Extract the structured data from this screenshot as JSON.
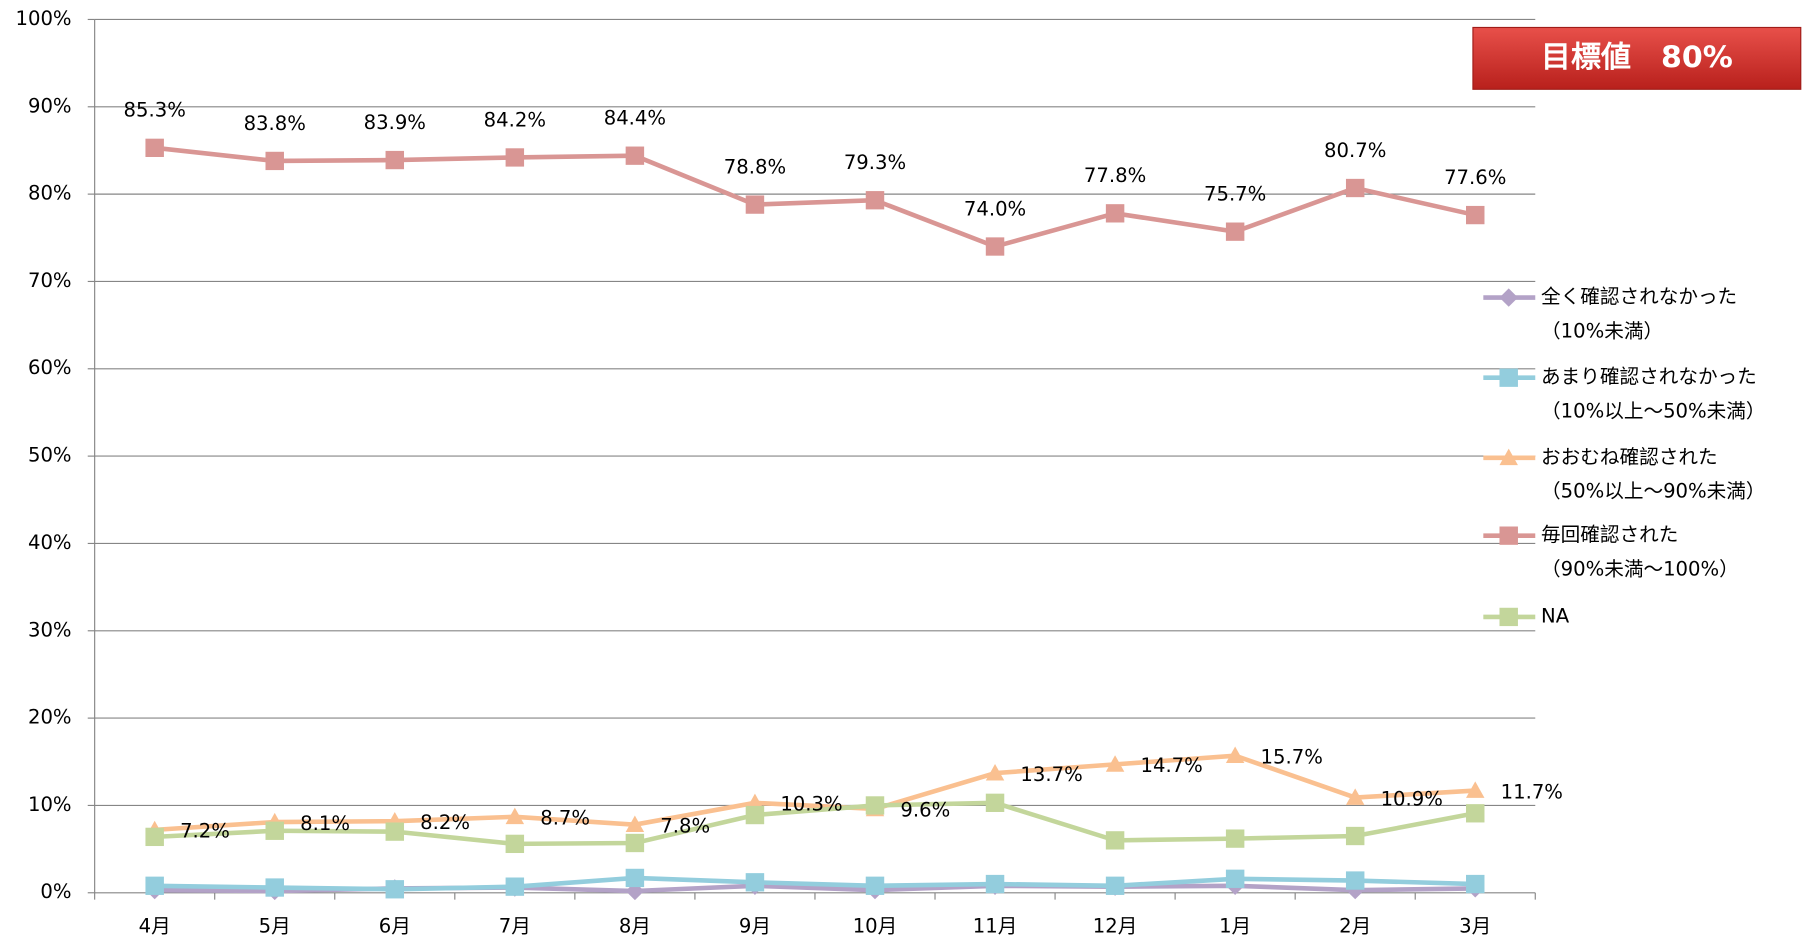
{
  "chart_data": {
    "type": "line",
    "categories": [
      "4月",
      "5月",
      "6月",
      "7月",
      "8月",
      "9月",
      "10月",
      "11月",
      "12月",
      "1月",
      "2月",
      "3月"
    ],
    "ylim": [
      0,
      100
    ],
    "yticks": [
      {
        "value": 0,
        "label": "0%"
      },
      {
        "value": 10,
        "label": "10%"
      },
      {
        "value": 20,
        "label": "20%"
      },
      {
        "value": 30,
        "label": "30%"
      },
      {
        "value": 40,
        "label": "40%"
      },
      {
        "value": 50,
        "label": "50%"
      },
      {
        "value": 60,
        "label": "60%"
      },
      {
        "value": 70,
        "label": "70%"
      },
      {
        "value": 80,
        "label": "80%"
      },
      {
        "value": 90,
        "label": "90%"
      },
      {
        "value": 100,
        "label": "100%"
      }
    ],
    "grid": true,
    "annotation": "目標値　80%",
    "series": [
      {
        "name": [
          "全く確認されなかった",
          "（10%未満）"
        ],
        "color": "#b3a2c7",
        "marker": "diamond",
        "values": [
          0.3,
          0.2,
          0.5,
          0.6,
          0.2,
          0.8,
          0.3,
          0.8,
          0.7,
          0.8,
          0.3,
          0.5
        ]
      },
      {
        "name": [
          "あまり確認されなかった",
          "（10%以上～50%未満）"
        ],
        "color": "#93cddd",
        "marker": "square",
        "values": [
          0.8,
          0.6,
          0.4,
          0.7,
          1.7,
          1.2,
          0.8,
          1.0,
          0.8,
          1.6,
          1.4,
          1.0
        ]
      },
      {
        "name": [
          "おおむね確認された",
          "（50%以上～90%未満）"
        ],
        "color": "#fac090",
        "marker": "triangle",
        "values": [
          7.2,
          8.1,
          8.2,
          8.7,
          7.8,
          10.3,
          9.6,
          13.7,
          14.7,
          15.7,
          10.9,
          11.7
        ],
        "value_labels": [
          "7.2%",
          "8.1%",
          "8.2%",
          "8.7%",
          "7.8%",
          "10.3%",
          "9.6%",
          "13.7%",
          "14.7%",
          "15.7%",
          "10.9%",
          "11.7%"
        ]
      },
      {
        "name": [
          "毎回確認された",
          "（90%未満～100%）"
        ],
        "color": "#d99694",
        "marker": "square",
        "values": [
          85.3,
          83.8,
          83.9,
          84.2,
          84.4,
          78.8,
          79.3,
          74.0,
          77.8,
          75.7,
          80.7,
          77.6
        ],
        "value_labels": [
          "85.3%",
          "83.8%",
          "83.9%",
          "84.2%",
          "84.4%",
          "78.8%",
          "79.3%",
          "74.0%",
          "77.8%",
          "75.7%",
          "80.7%",
          "77.6%"
        ]
      },
      {
        "name": [
          "NA"
        ],
        "color": "#c3d69b",
        "marker": "square",
        "values": [
          6.4,
          7.1,
          7.0,
          5.6,
          5.7,
          8.9,
          10.0,
          10.3,
          6.0,
          6.2,
          6.5,
          9.1
        ]
      }
    ]
  }
}
